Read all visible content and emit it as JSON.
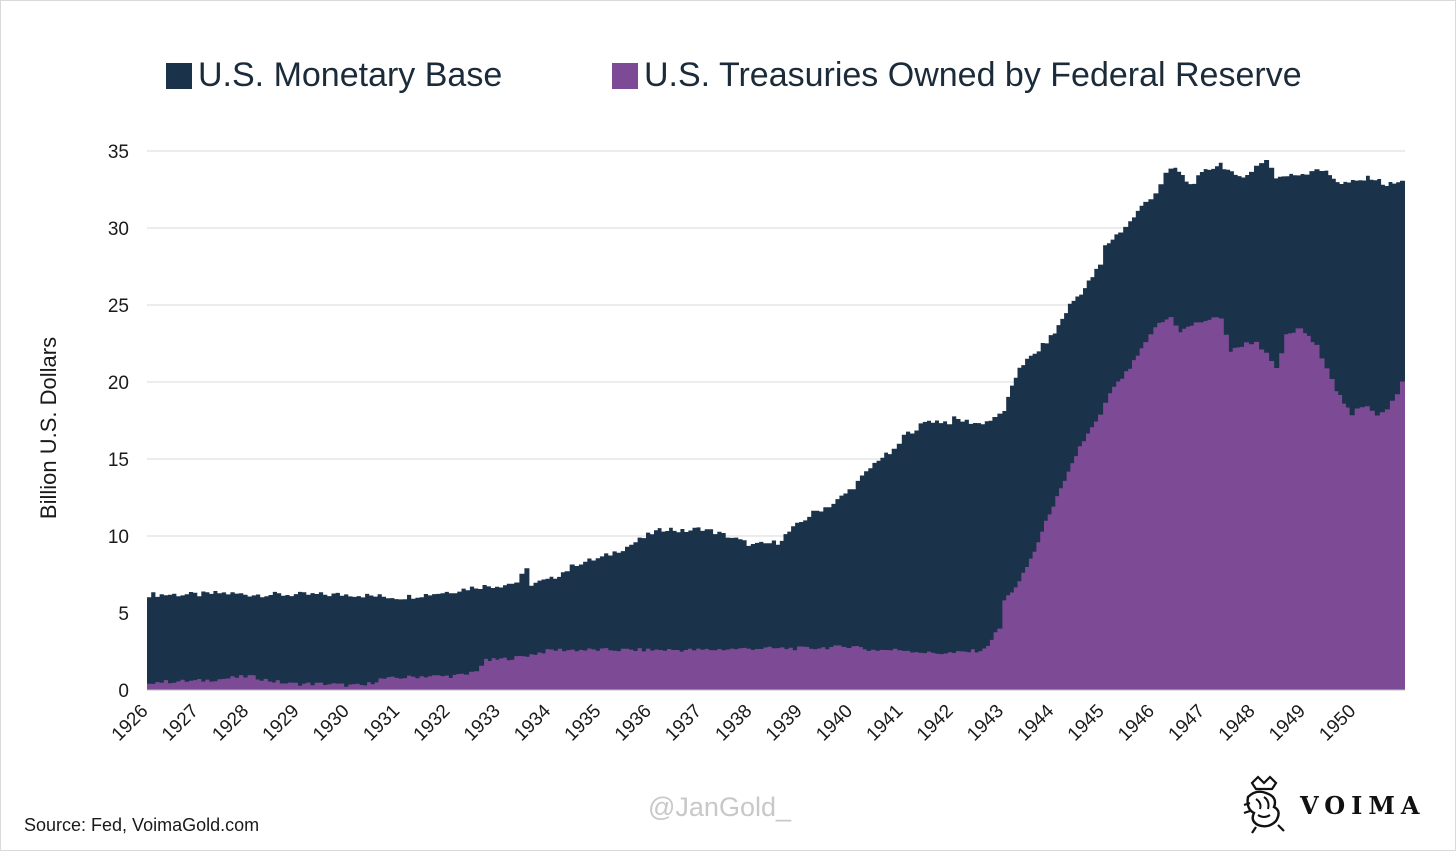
{
  "chart_data": {
    "type": "area",
    "legend": {
      "placement": "top",
      "entries": [
        {
          "label": "U.S. Monetary Base",
          "color": "#1b324b"
        },
        {
          "label": "U.S. Treasuries Owned by Federal Reserve",
          "color": "#7d4a96"
        }
      ]
    },
    "ylabel": "Billion U.S. Dollars",
    "xlabel": "",
    "ylim": [
      0,
      35
    ],
    "yticks": [
      0,
      5,
      10,
      15,
      20,
      25,
      30,
      35
    ],
    "xlim": [
      1926,
      1951
    ],
    "xticks": [
      "1926",
      "1927",
      "1928",
      "1929",
      "1930",
      "1931",
      "1932",
      "1933",
      "1934",
      "1935",
      "1936",
      "1937",
      "1938",
      "1939",
      "1940",
      "1941",
      "1942",
      "1943",
      "1944",
      "1945",
      "1946",
      "1947",
      "1948",
      "1949",
      "1950"
    ],
    "grid": "horizontal",
    "series": [
      {
        "name": "U.S. Monetary Base",
        "color": "#1b324b",
        "x": [
          1926.0,
          1927.0,
          1927.4,
          1928.0,
          1928.5,
          1929.0,
          1929.5,
          1930.0,
          1930.5,
          1931.0,
          1931.5,
          1932.0,
          1932.5,
          1933.0,
          1933.3,
          1933.5,
          1933.6,
          1934.0,
          1934.3,
          1934.5,
          1935.0,
          1935.5,
          1936.0,
          1936.3,
          1936.6,
          1937.0,
          1937.5,
          1938.0,
          1938.5,
          1938.8,
          1939.2,
          1939.6,
          1940.0,
          1940.5,
          1940.8,
          1941.0,
          1941.5,
          1941.9,
          1942.0,
          1942.5,
          1942.8,
          1943.0,
          1943.3,
          1943.6,
          1944.0,
          1944.3,
          1944.6,
          1944.9,
          1945.0,
          1945.3,
          1945.5,
          1945.8,
          1946.0,
          1946.2,
          1946.4,
          1946.7,
          1947.0,
          1947.3,
          1947.6,
          1947.9,
          1948.0,
          1948.2,
          1948.4,
          1948.7,
          1949.0,
          1949.2,
          1949.4,
          1949.7,
          1950.0,
          1950.3,
          1950.6,
          1950.9,
          1951.0
        ],
        "values": [
          6.2,
          6.2,
          6.3,
          6.2,
          6.2,
          6.2,
          6.2,
          6.2,
          6.1,
          6.0,
          6.2,
          6.4,
          6.7,
          6.8,
          7.0,
          7.8,
          6.9,
          7.2,
          7.8,
          8.2,
          8.6,
          9.3,
          10.2,
          10.5,
          10.3,
          10.5,
          10.0,
          9.4,
          9.6,
          10.5,
          11.5,
          12.1,
          13.2,
          15.0,
          15.5,
          16.5,
          17.5,
          17.4,
          17.6,
          17.3,
          17.6,
          18.2,
          21.0,
          21.8,
          23.2,
          25.0,
          26.1,
          27.6,
          28.8,
          29.8,
          30.4,
          31.7,
          32.3,
          33.5,
          33.9,
          32.8,
          33.7,
          34.2,
          33.3,
          33.6,
          34.0,
          34.5,
          33.3,
          33.4,
          33.6,
          33.9,
          33.6,
          32.9,
          33.0,
          33.3,
          32.8,
          33.0,
          32.9
        ]
      },
      {
        "name": "U.S. Treasuries Owned by Federal Reserve",
        "color": "#7d4a96",
        "x": [
          1926.0,
          1927.0,
          1927.4,
          1928.0,
          1928.4,
          1928.8,
          1929.0,
          1929.5,
          1930.0,
          1930.3,
          1930.6,
          1931.0,
          1931.5,
          1932.0,
          1932.3,
          1932.5,
          1932.7,
          1933.0,
          1933.3,
          1933.6,
          1934.0,
          1935.0,
          1936.0,
          1937.0,
          1938.0,
          1939.0,
          1939.8,
          1940.0,
          1940.3,
          1941.0,
          1941.5,
          1942.0,
          1942.3,
          1942.6,
          1942.9,
          1943.0,
          1943.3,
          1943.6,
          1943.9,
          1944.2,
          1944.5,
          1944.9,
          1945.1,
          1945.5,
          1945.8,
          1946.0,
          1946.3,
          1946.5,
          1946.8,
          1947.0,
          1947.3,
          1947.5,
          1947.8,
          1948.0,
          1948.2,
          1948.4,
          1948.6,
          1948.9,
          1949.2,
          1949.4,
          1949.6,
          1949.9,
          1950.0,
          1950.2,
          1950.4,
          1950.6,
          1950.8,
          1951.0
        ],
        "values": [
          0.5,
          0.6,
          0.7,
          0.9,
          0.6,
          0.4,
          0.4,
          0.4,
          0.3,
          0.3,
          0.7,
          0.8,
          0.9,
          0.9,
          1.0,
          1.3,
          1.9,
          2.0,
          2.1,
          2.3,
          2.6,
          2.6,
          2.6,
          2.6,
          2.7,
          2.7,
          2.8,
          2.9,
          2.6,
          2.6,
          2.4,
          2.4,
          2.5,
          2.6,
          4.0,
          5.8,
          7.0,
          9.0,
          11.5,
          13.5,
          15.8,
          17.8,
          19.3,
          20.9,
          22.5,
          23.6,
          24.2,
          23.3,
          23.8,
          24.0,
          24.2,
          22.0,
          22.5,
          22.6,
          21.8,
          20.8,
          23.0,
          23.5,
          22.3,
          21.0,
          19.5,
          17.8,
          18.2,
          18.5,
          17.9,
          18.3,
          19.2,
          20.7
        ]
      }
    ],
    "source": "Source: Fed, VoimaGold.com",
    "watermark": "@JanGold_",
    "brand": "VOIMA"
  }
}
